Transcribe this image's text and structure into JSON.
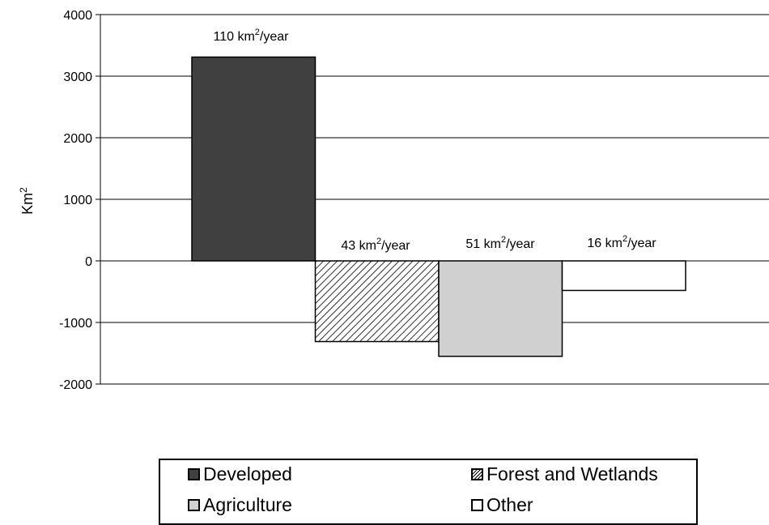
{
  "chart_data": {
    "type": "bar",
    "ylabel": "Km",
    "ylabel_superscript": "2",
    "ylim": [
      -2000,
      4000
    ],
    "yticks": [
      4000,
      3000,
      2000,
      1000,
      0,
      -1000,
      -2000
    ],
    "grid": true,
    "legend_position": "bottom",
    "categories": [
      "Developed",
      "Forest and Wetlands",
      "Agriculture",
      "Other"
    ],
    "values": [
      3310,
      -1310,
      -1550,
      -480
    ],
    "colors": [
      "#404040",
      "hatched",
      "#d0d0d0",
      "#ffffff"
    ],
    "annotations": [
      {
        "prefix": "110 km",
        "sup": "2",
        "suffix": "/year"
      },
      {
        "prefix": "43 km",
        "sup": "2",
        "suffix": "/year"
      },
      {
        "prefix": "51 km",
        "sup": "2",
        "suffix": "/year"
      },
      {
        "prefix": "16 km",
        "sup": "2",
        "suffix": "/year"
      }
    ]
  },
  "legend": {
    "items": [
      "Developed",
      "Forest and Wetlands",
      "Agriculture",
      "Other"
    ]
  }
}
